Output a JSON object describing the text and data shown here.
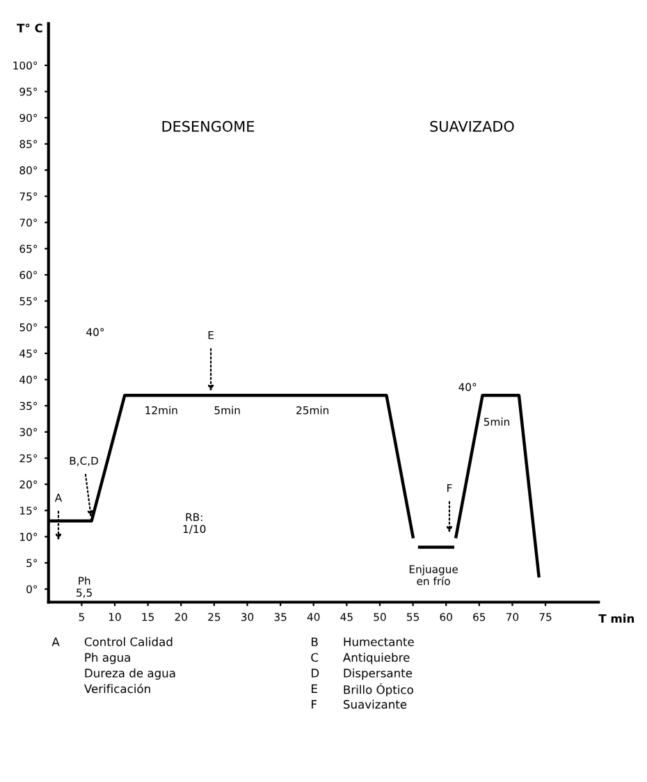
{
  "chart_data": {
    "type": "line",
    "xlabel": "T min",
    "ylabel": "T° C",
    "series": [
      {
        "color": "#000000",
        "x": [
          0,
          6.5,
          11.5,
          24.5,
          30,
          51,
          55
        ],
        "values": [
          13,
          13,
          37,
          37,
          37,
          37,
          10
        ]
      },
      {
        "color": "#000000",
        "x": [
          56,
          61
        ],
        "values": [
          8,
          8
        ]
      },
      {
        "color": "#000000",
        "x": [
          61.5,
          65.5,
          71,
          74
        ],
        "values": [
          10,
          37,
          37,
          2.5
        ]
      }
    ],
    "xlim": [
      0,
      83
    ],
    "ylim": [
      -2.5,
      108
    ],
    "xticks": [
      5,
      10,
      15,
      20,
      25,
      30,
      35,
      40,
      45,
      50,
      55,
      60,
      65,
      70,
      75
    ],
    "yticks": [
      {
        "value": 0,
        "label": "0°"
      },
      {
        "value": 5,
        "label": "5°"
      },
      {
        "value": 10,
        "label": "10°"
      },
      {
        "value": 15,
        "label": "15°"
      },
      {
        "value": 20,
        "label": "20°"
      },
      {
        "value": 25,
        "label": "25°"
      },
      {
        "value": 30,
        "label": "30°"
      },
      {
        "value": 35,
        "label": "35°"
      },
      {
        "value": 40,
        "label": "40°"
      },
      {
        "value": 45,
        "label": "45°"
      },
      {
        "value": 50,
        "label": "50°"
      },
      {
        "value": 55,
        "label": "55°"
      },
      {
        "value": 60,
        "label": "60°"
      },
      {
        "value": 65,
        "label": "65°"
      },
      {
        "value": 70,
        "label": "70°"
      },
      {
        "value": 75,
        "label": "75°"
      },
      {
        "value": 80,
        "label": "80°"
      },
      {
        "value": 85,
        "label": "85°"
      },
      {
        "value": 90,
        "label": "90°"
      },
      {
        "value": 95,
        "label": "95°"
      },
      {
        "value": 100,
        "label": "100°"
      }
    ],
    "grid": false,
    "legend": false,
    "marker": "none",
    "line_style": "solid",
    "annotations": [
      "DESENGOME",
      "SUAVIZADO",
      "40°",
      "A",
      {
        "text": "B,C,D",
        "x": 6.5,
        "y": 13
      },
      {
        "text": "E",
        "x": 24.5,
        "y": 37
      },
      {
        "text": "F",
        "x": 60.5,
        "y": 10
      },
      "12min",
      "5min",
      "25min",
      "40°",
      "5min",
      "Ph\n5,5",
      "RB:\n1/10",
      "Enjuague\nen frío",
      "A",
      "Control Calidad",
      "Ph agua",
      "Dureza de agua",
      "Verificación",
      "B",
      "Humectante",
      "C",
      "Antiquiebre",
      "D",
      "Dispersante",
      "E",
      "Brillo Óptico",
      "F",
      "Suavizante"
    ]
  }
}
